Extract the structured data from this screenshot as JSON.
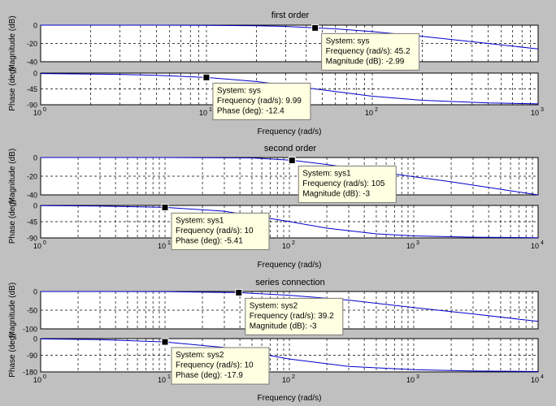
{
  "window_bg": "#c0c0c0",
  "colors": {
    "line": "#0000cc",
    "grid": "#000000",
    "tip_bg": "#ffffe1",
    "marker": "#000000"
  },
  "chart_data": [
    {
      "type": "line",
      "title": "first order",
      "xlabel": "Frequency  (rad/s)",
      "x_scale": "log",
      "xlim": [
        1,
        1000
      ],
      "x_tick_labels": [
        {
          "base": "10",
          "exp": "0"
        },
        {
          "base": "10",
          "exp": "1"
        },
        {
          "base": "10",
          "exp": "2"
        },
        {
          "base": "10",
          "exp": "3"
        }
      ],
      "magnitude": {
        "ylabel": "Magnitude (dB)",
        "ylim": [
          -40,
          0
        ],
        "yticks": [
          0,
          -20,
          -40
        ],
        "series": [
          {
            "name": "sys",
            "x": [
              1,
              5,
              10,
              20,
              30,
              45.2,
              60,
              100,
              200,
              500,
              1000
            ],
            "y": [
              0,
              -0.04,
              -0.17,
              -0.65,
              -1.35,
              -2.99,
              -3.98,
              -7.0,
              -12.3,
              -20.0,
              -26.0
            ]
          }
        ]
      },
      "phase": {
        "ylabel": "Phase (deg)",
        "ylim": [
          -90,
          0
        ],
        "yticks": [
          0,
          -45,
          -90
        ],
        "series": [
          {
            "name": "sys",
            "x": [
              1,
              3,
              5,
              9.99,
              20,
              45.2,
              100,
              200,
              500,
              1000
            ],
            "y": [
              -1.3,
              -3.8,
              -6.3,
              -12.4,
              -24,
              -45,
              -65.7,
              -77.3,
              -84.9,
              -87.4
            ]
          }
        ]
      },
      "annotations": [
        {
          "panel": "magnitude",
          "x": 45.2,
          "y": -2.99,
          "lines": [
            {
              "label": "System: ",
              "value": "sys"
            },
            {
              "label": "Frequency (rad/s): ",
              "value": "45.2"
            },
            {
              "label": "Magnitude (dB): ",
              "value": "-2.99"
            }
          ]
        },
        {
          "panel": "phase",
          "x": 9.99,
          "y": -12.4,
          "lines": [
            {
              "label": "System: ",
              "value": "sys"
            },
            {
              "label": "Frequency (rad/s): ",
              "value": "9.99"
            },
            {
              "label": "Phase (deg): ",
              "value": "-12.4"
            }
          ]
        }
      ]
    },
    {
      "type": "line",
      "title": "second order",
      "xlabel": "Frequency  (rad/s)",
      "x_scale": "log",
      "xlim": [
        1,
        10000
      ],
      "x_tick_labels": [
        {
          "base": "10",
          "exp": "0"
        },
        {
          "base": "10",
          "exp": "1"
        },
        {
          "base": "10",
          "exp": "2"
        },
        {
          "base": "10",
          "exp": "3"
        },
        {
          "base": "10",
          "exp": "4"
        }
      ],
      "magnitude": {
        "ylabel": "Magnitude (dB)",
        "ylim": [
          -40,
          0
        ],
        "yticks": [
          0,
          -20,
          -40
        ],
        "series": [
          {
            "name": "sys1",
            "x": [
              1,
              10,
              50,
              105,
              200,
              500,
              1000,
              2000,
              5000,
              10000
            ],
            "y": [
              0,
              0,
              -0.43,
              -3,
              -7.5,
              -15,
              -20.5,
              -26,
              -34,
              -40
            ]
          }
        ]
      },
      "phase": {
        "ylabel": "Phase (deg)",
        "ylim": [
          -90,
          0
        ],
        "yticks": [
          0,
          -45,
          -90
        ],
        "series": [
          {
            "name": "sys1",
            "x": [
              1,
              3,
              10,
              30,
              100,
              200,
              500,
              1000,
              3000,
              10000
            ],
            "y": [
              -0.5,
              -1.7,
              -5.41,
              -16,
              -44.7,
              -63,
              -78.7,
              -84.3,
              -88,
              -89.4
            ]
          }
        ]
      },
      "annotations": [
        {
          "panel": "magnitude",
          "x": 105,
          "y": -3,
          "lines": [
            {
              "label": "System: ",
              "value": "sys1"
            },
            {
              "label": "Frequency (rad/s): ",
              "value": "105"
            },
            {
              "label": "Magnitude (dB): ",
              "value": "-3"
            }
          ]
        },
        {
          "panel": "phase",
          "x": 10,
          "y": -5.41,
          "lines": [
            {
              "label": "System: ",
              "value": "sys1"
            },
            {
              "label": "Frequency (rad/s): ",
              "value": "10"
            },
            {
              "label": "Phase (deg): ",
              "value": "-5.41"
            }
          ]
        }
      ]
    },
    {
      "type": "line",
      "title": "series connection",
      "xlabel": "Frequency  (rad/s)",
      "x_scale": "log",
      "xlim": [
        1,
        10000
      ],
      "x_tick_labels": [
        {
          "base": "10",
          "exp": "0"
        },
        {
          "base": "10",
          "exp": "1"
        },
        {
          "base": "10",
          "exp": "2"
        },
        {
          "base": "10",
          "exp": "3"
        },
        {
          "base": "10",
          "exp": "4"
        }
      ],
      "magnitude": {
        "ylabel": "Magnitude (dB)",
        "ylim": [
          -100,
          0
        ],
        "yticks": [
          0,
          -50,
          -100
        ],
        "series": [
          {
            "name": "sys2",
            "x": [
              1,
              10,
              39.2,
              100,
              300,
              1000,
              3000,
              10000
            ],
            "y": [
              0,
              -0.2,
              -3,
              -10,
              -23,
              -43,
              -60,
              -80
            ]
          }
        ]
      },
      "phase": {
        "ylabel": "Phase (deg)",
        "ylim": [
          -180,
          0
        ],
        "yticks": [
          0,
          -90,
          -180
        ],
        "series": [
          {
            "name": "sys2",
            "x": [
              1,
              3,
              10,
              30,
              100,
              300,
              1000,
              3000,
              10000
            ],
            "y": [
              -1.8,
              -5.4,
              -17.9,
              -48,
              -110,
              -150,
              -168,
              -175,
              -178
            ]
          }
        ]
      },
      "annotations": [
        {
          "panel": "magnitude",
          "x": 39.2,
          "y": -3,
          "lines": [
            {
              "label": "System: ",
              "value": "sys2"
            },
            {
              "label": "Frequency (rad/s): ",
              "value": "39.2"
            },
            {
              "label": "Magnitude (dB): ",
              "value": "-3"
            }
          ]
        },
        {
          "panel": "phase",
          "x": 10,
          "y": -17.9,
          "lines": [
            {
              "label": "System: ",
              "value": "sys2"
            },
            {
              "label": "Frequency (rad/s): ",
              "value": "10"
            },
            {
              "label": "Phase (deg): ",
              "value": "-17.9"
            }
          ]
        }
      ]
    }
  ]
}
